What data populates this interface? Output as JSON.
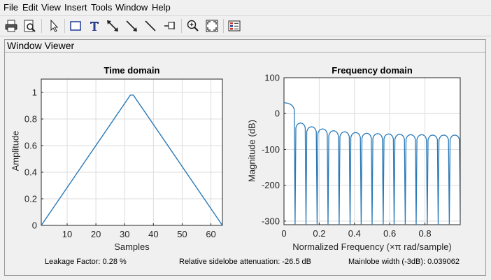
{
  "menu": [
    "File",
    "Edit",
    "View",
    "Insert",
    "Tools",
    "Window",
    "Help"
  ],
  "toolbar": [
    {
      "name": "print-icon"
    },
    {
      "name": "print-preview-icon"
    },
    {
      "name": "select-arrow-icon"
    },
    {
      "name": "rectangle-icon"
    },
    {
      "name": "text-icon"
    },
    {
      "name": "double-arrow-icon"
    },
    {
      "name": "arrow-icon"
    },
    {
      "name": "line-icon"
    },
    {
      "name": "pin-icon"
    },
    {
      "name": "zoom-in-icon"
    },
    {
      "name": "full-view-icon"
    },
    {
      "name": "legend-icon"
    }
  ],
  "panel": {
    "title": "Window Viewer"
  },
  "status": {
    "leakage": "Leakage Factor: 0.28 %",
    "sidelobe": "Relative sidelobe attenuation: -26.5 dB",
    "mainlobe": "Mainlobe width (-3dB): 0.039062"
  },
  "colors": {
    "line": "#2a7ab8",
    "grid": "#dcdcdc",
    "axis": "#262626"
  },
  "chart_data": [
    {
      "type": "line",
      "title": "Time domain",
      "xlabel": "Samples",
      "ylabel": "Amplitude",
      "xlim": [
        1,
        64
      ],
      "ylim": [
        0,
        1.1
      ],
      "xticks": [
        10,
        20,
        30,
        40,
        50,
        60
      ],
      "yticks": [
        0,
        0.2,
        0.4,
        0.6,
        0.8,
        1
      ],
      "ytick_labels": [
        "0",
        "0.2",
        "0.4",
        "0.6",
        "0.8",
        "1"
      ],
      "grid": true,
      "x": [
        1,
        32,
        33,
        64
      ],
      "y": [
        0.0,
        0.98,
        0.98,
        0.0
      ]
    },
    {
      "type": "line",
      "title": "Frequency domain",
      "xlabel": "Normalized Frequency  (×π rad/sample)",
      "ylabel": "Magnitude (dB)",
      "xlim": [
        0,
        1
      ],
      "ylim": [
        -310,
        100
      ],
      "xticks": [
        0,
        0.2,
        0.4,
        0.6,
        0.8
      ],
      "xtick_labels": [
        "0",
        "0.2",
        "0.4",
        "0.6",
        "0.8"
      ],
      "yticks": [
        100,
        0,
        -100,
        -200,
        -300
      ],
      "grid": true,
      "mainlobe_peak_db": 30,
      "sidelobe_peaks_db": [
        -26.5,
        -37,
        -43,
        -48,
        -51,
        -53,
        -55,
        -56,
        -57,
        -58,
        -59,
        -59,
        -60,
        -60,
        -60
      ],
      "null_frequencies": [
        0.063,
        0.125,
        0.188,
        0.25,
        0.313,
        0.375,
        0.438,
        0.5,
        0.563,
        0.625,
        0.688,
        0.75,
        0.813,
        0.875,
        0.938
      ]
    }
  ]
}
